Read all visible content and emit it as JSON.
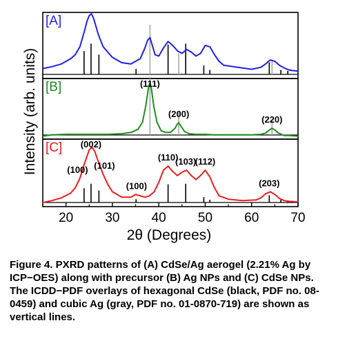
{
  "chart_data": {
    "type": "line",
    "xlabel": "2θ (Degrees)",
    "ylabel": "Intensity (arb. units)",
    "xlim": [
      15,
      70
    ],
    "xticks": [
      "20",
      "30",
      "40",
      "50",
      "60",
      "70"
    ],
    "reference_patterns": {
      "hexagonal_CdSe": {
        "color": "#000000",
        "positions": [
          23.9,
          25.4,
          27.1,
          35.1,
          42.0,
          45.8,
          49.7,
          51.0,
          63.8,
          66.3,
          67.8
        ],
        "heights": [
          0.47,
          0.62,
          0.4,
          0.11,
          0.6,
          0.62,
          0.18,
          0.09,
          0.24,
          0.09,
          0.07
        ]
      },
      "cubic_Ag": {
        "color": "#a6a6a6",
        "positions": [
          38.1,
          44.3,
          64.4
        ],
        "heights": [
          1.0,
          0.42,
          0.26
        ]
      }
    },
    "panels": [
      {
        "label": "[A]",
        "label_color": "#1f1fe6",
        "series_color": "#1f1fe6",
        "show_hex": true,
        "show_cubic": true,
        "peak_labels": [],
        "series": {
          "x": [
            15,
            17,
            19,
            21,
            22,
            23,
            24,
            24.5,
            25,
            25.5,
            26,
            27,
            28,
            30,
            32,
            34,
            35,
            36,
            37,
            37.6,
            38.1,
            38.6,
            39.2,
            40,
            41,
            42,
            43,
            44,
            45,
            46,
            47,
            48,
            49,
            50,
            51,
            52,
            53,
            54,
            56,
            58,
            60,
            62,
            63,
            64,
            65,
            66,
            67,
            68,
            69,
            70
          ],
          "y": [
            0.15,
            0.18,
            0.22,
            0.3,
            0.36,
            0.48,
            0.72,
            0.86,
            0.95,
            0.98,
            0.9,
            0.66,
            0.48,
            0.32,
            0.24,
            0.22,
            0.26,
            0.3,
            0.46,
            0.58,
            0.62,
            0.5,
            0.36,
            0.34,
            0.46,
            0.56,
            0.5,
            0.42,
            0.38,
            0.44,
            0.4,
            0.34,
            0.38,
            0.5,
            0.48,
            0.36,
            0.26,
            0.2,
            0.18,
            0.16,
            0.14,
            0.17,
            0.22,
            0.28,
            0.26,
            0.2,
            0.16,
            0.13,
            0.12,
            0.11
          ]
        }
      },
      {
        "label": "[B]",
        "label_color": "#1e8c1e",
        "series_color": "#1e8c1e",
        "show_hex": false,
        "show_cubic": true,
        "peak_labels": [
          {
            "text": "(111)",
            "x": 38.1
          },
          {
            "text": "(200)",
            "x": 44.3
          },
          {
            "text": "(220)",
            "x": 64.4
          }
        ],
        "series": {
          "x": [
            15,
            17,
            20,
            23,
            26,
            29,
            32,
            34,
            35.5,
            36.5,
            37.2,
            37.8,
            38.1,
            38.4,
            38.9,
            39.6,
            40.5,
            41.5,
            42.5,
            43.5,
            44.0,
            44.3,
            44.7,
            45.5,
            46.5,
            48,
            50,
            52,
            55,
            58,
            60,
            62,
            63,
            63.8,
            64.4,
            65,
            65.8,
            67,
            68,
            70
          ],
          "y": [
            0.05,
            0.07,
            0.08,
            0.08,
            0.08,
            0.08,
            0.09,
            0.11,
            0.16,
            0.28,
            0.55,
            0.86,
            0.93,
            0.84,
            0.55,
            0.28,
            0.14,
            0.11,
            0.11,
            0.18,
            0.25,
            0.27,
            0.22,
            0.13,
            0.09,
            0.08,
            0.08,
            0.07,
            0.07,
            0.07,
            0.07,
            0.08,
            0.1,
            0.15,
            0.18,
            0.15,
            0.1,
            0.06,
            0.06,
            0.05
          ]
        }
      },
      {
        "label": "[C]",
        "label_color": "#ee1c1c",
        "series_color": "#ee1c1c",
        "show_hex": true,
        "show_cubic": false,
        "peak_labels": [
          {
            "text": "(100)",
            "x": 22.5
          },
          {
            "text": "(002)",
            "x": 25.4
          },
          {
            "text": "(101)",
            "x": 28.3
          },
          {
            "text": "(100)",
            "x": 35.2
          },
          {
            "text": "(110)",
            "x": 42.0
          },
          {
            "text": "(103)",
            "x": 45.8
          },
          {
            "text": "(112)",
            "x": 50.0
          },
          {
            "text": "(203)",
            "x": 63.8
          }
        ],
        "series": {
          "x": [
            15,
            17,
            19,
            21,
            22,
            23,
            24,
            25,
            25.6,
            26.2,
            27,
            28,
            29,
            30,
            32,
            34,
            35,
            36,
            37,
            38,
            39,
            40,
            41,
            42,
            43,
            44,
            45,
            46,
            47,
            48,
            49,
            50,
            51,
            52,
            53,
            55,
            58,
            61,
            62,
            63,
            64,
            65,
            66,
            67,
            68,
            70
          ],
          "y": [
            0.06,
            0.09,
            0.13,
            0.2,
            0.28,
            0.42,
            0.64,
            0.84,
            0.88,
            0.82,
            0.66,
            0.48,
            0.33,
            0.22,
            0.14,
            0.14,
            0.18,
            0.16,
            0.14,
            0.16,
            0.22,
            0.36,
            0.54,
            0.6,
            0.52,
            0.46,
            0.51,
            0.54,
            0.46,
            0.4,
            0.46,
            0.54,
            0.44,
            0.28,
            0.16,
            0.11,
            0.09,
            0.1,
            0.13,
            0.19,
            0.22,
            0.18,
            0.12,
            0.09,
            0.08,
            0.07
          ]
        }
      }
    ]
  },
  "caption": "Figure 4.  PXRD patterns of (A) CdSe/Ag aerogel (2.21% Ag by ICP−OES) along with precursor (B) Ag NPs and (C) CdSe NPs. The ICDD−PDF overlays of hexagonal CdSe (black, PDF no. 08-0459) and cubic Ag (gray, PDF no. 01-0870-719) are shown as vertical lines."
}
